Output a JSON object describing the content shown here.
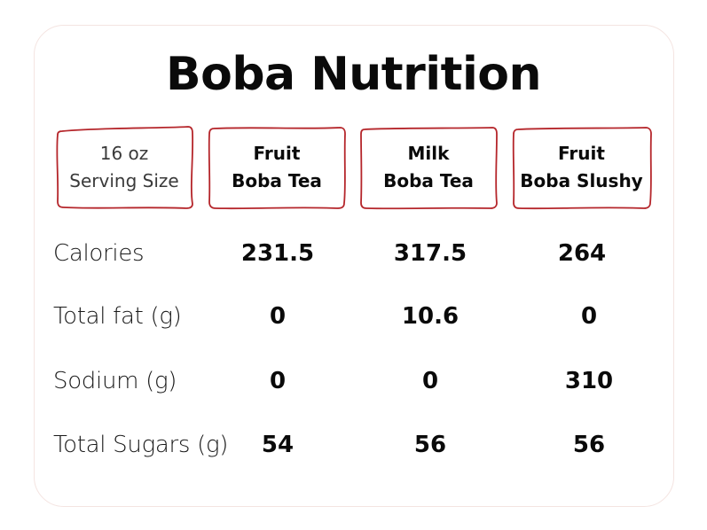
{
  "title": "Boba Nutrition",
  "serving": {
    "line1": "16 oz",
    "line2": "Serving Size"
  },
  "columns": [
    {
      "line1": "Fruit",
      "line2": "Boba Tea"
    },
    {
      "line1": "Milk",
      "line2": "Boba Tea"
    },
    {
      "line1": "Fruit",
      "line2": "Boba Slushy"
    }
  ],
  "rows": [
    {
      "label": "Calories",
      "values": [
        "231.5",
        "317.5",
        "264"
      ]
    },
    {
      "label": "Total fat (g)",
      "values": [
        "0",
        "10.6",
        "0"
      ]
    },
    {
      "label": "Sodium (g)",
      "values": [
        "0",
        "0",
        "310"
      ]
    },
    {
      "label": "Total Sugars (g)",
      "values": [
        "54",
        "56",
        "56"
      ]
    }
  ],
  "colors": {
    "box_outline": "#b5262b",
    "card_border": "#f4e4e1",
    "text": "#111111"
  }
}
